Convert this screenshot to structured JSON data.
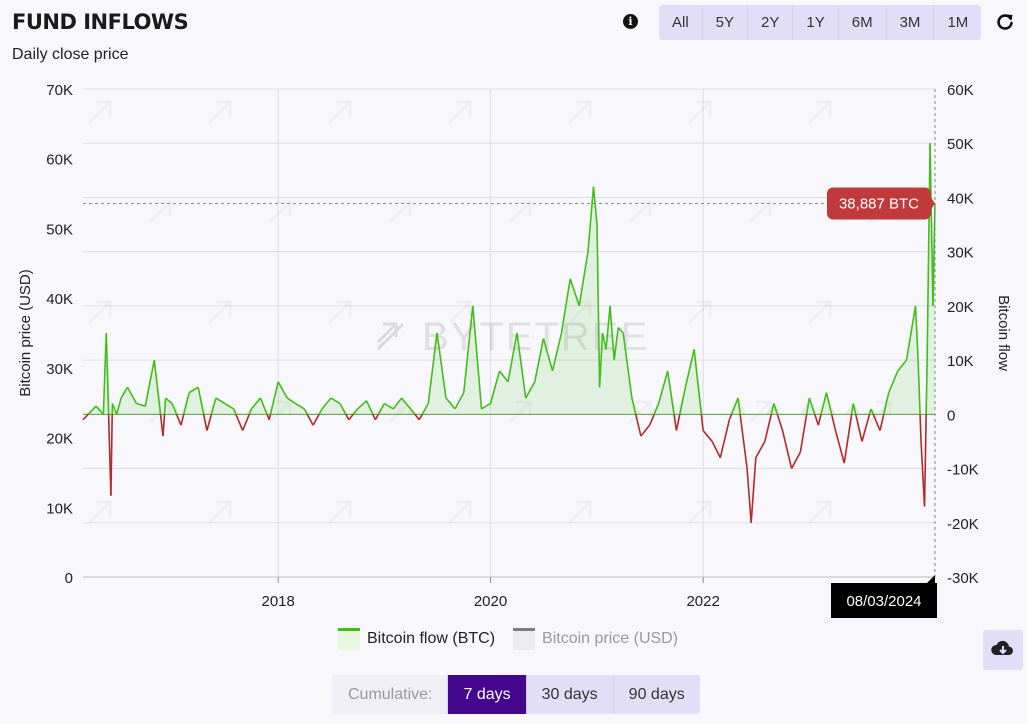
{
  "header": {
    "title": "FUND INFLOWS",
    "subtitle": "Daily close price",
    "info_icon": "info-icon",
    "refresh_icon": "refresh-icon"
  },
  "range_buttons": [
    "All",
    "5Y",
    "2Y",
    "1Y",
    "6M",
    "3M",
    "1M"
  ],
  "legend": {
    "flow_label": "Bitcoin flow (BTC)",
    "price_label": "Bitcoin price (USD)"
  },
  "cumulative": {
    "label": "Cumulative:",
    "options": [
      "7 days",
      "30 days",
      "90 days"
    ],
    "selected": "7 days"
  },
  "download_icon": "cloud-download-icon",
  "watermark": "BYTETREE",
  "colors": {
    "inflow": "#43bd1b",
    "outflow": "#b22b2b",
    "accent": "#44068c",
    "tooltip": "#c0393b"
  },
  "chart_data": {
    "type": "line",
    "ylabel": "Bitcoin price (USD)",
    "y2label": "Bitcoin flow",
    "y_left": {
      "range": [
        0,
        70000
      ],
      "ticks": [
        "0",
        "10K",
        "20K",
        "30K",
        "40K",
        "50K",
        "60K",
        "70K"
      ]
    },
    "y_right": {
      "range": [
        -30000,
        60000
      ],
      "ticks": [
        "-30K",
        "-20K",
        "-10K",
        "0",
        "10K",
        "20K",
        "30K",
        "40K",
        "50K",
        "60K"
      ]
    },
    "x_ticks": [
      "2018",
      "2020",
      "2022"
    ],
    "x_range": [
      "2016-03-01",
      "2024-03-08"
    ],
    "grid": true,
    "series": [
      {
        "name": "Bitcoin flow (BTC)",
        "x": [
          "2016-03-01",
          "2016-04-15",
          "2016-05-10",
          "2016-05-20",
          "2016-06-05",
          "2016-06-10",
          "2016-06-25",
          "2016-07-10",
          "2016-08-01",
          "2016-09-01",
          "2016-10-01",
          "2016-11-01",
          "2016-12-01",
          "2016-12-10",
          "2017-01-01",
          "2017-02-01",
          "2017-03-01",
          "2017-04-01",
          "2017-05-01",
          "2017-06-01",
          "2017-07-01",
          "2017-08-01",
          "2017-09-01",
          "2017-10-01",
          "2017-11-01",
          "2017-12-01",
          "2018-01-01",
          "2018-02-01",
          "2018-03-01",
          "2018-04-01",
          "2018-05-01",
          "2018-06-01",
          "2018-07-01",
          "2018-08-01",
          "2018-09-01",
          "2018-10-01",
          "2018-11-01",
          "2018-12-01",
          "2019-01-01",
          "2019-02-01",
          "2019-03-01",
          "2019-04-01",
          "2019-05-01",
          "2019-06-01",
          "2019-07-01",
          "2019-08-01",
          "2019-09-01",
          "2019-10-01",
          "2019-11-01",
          "2019-12-01",
          "2020-01-01",
          "2020-02-01",
          "2020-03-01",
          "2020-04-01",
          "2020-05-01",
          "2020-06-01",
          "2020-07-01",
          "2020-08-01",
          "2020-09-01",
          "2020-10-01",
          "2020-11-01",
          "2020-12-01",
          "2020-12-20",
          "2021-01-01",
          "2021-01-10",
          "2021-01-20",
          "2021-02-01",
          "2021-02-15",
          "2021-03-01",
          "2021-03-15",
          "2021-04-01",
          "2021-05-01",
          "2021-06-01",
          "2021-07-01",
          "2021-08-01",
          "2021-09-01",
          "2021-10-01",
          "2021-11-01",
          "2021-12-01",
          "2022-01-01",
          "2022-02-01",
          "2022-03-01",
          "2022-04-01",
          "2022-05-01",
          "2022-06-01",
          "2022-06-15",
          "2022-07-01",
          "2022-08-01",
          "2022-09-01",
          "2022-10-01",
          "2022-11-01",
          "2022-12-01",
          "2023-01-01",
          "2023-02-01",
          "2023-03-01",
          "2023-04-01",
          "2023-05-01",
          "2023-06-01",
          "2023-07-01",
          "2023-08-01",
          "2023-09-01",
          "2023-10-01",
          "2023-11-01",
          "2023-12-01",
          "2024-01-01",
          "2024-01-10",
          "2024-01-20",
          "2024-02-01",
          "2024-02-10",
          "2024-02-20",
          "2024-03-01",
          "2024-03-08"
        ],
        "values": [
          -1000,
          1500,
          0,
          15000,
          -15000,
          2000,
          0,
          3000,
          5000,
          2000,
          1500,
          10000,
          -4000,
          3000,
          2000,
          -2000,
          4000,
          5000,
          -3000,
          3000,
          2000,
          1000,
          -3000,
          1000,
          3000,
          -1000,
          6000,
          3000,
          2000,
          1000,
          -2000,
          1000,
          3000,
          2000,
          -1000,
          1000,
          2500,
          -1000,
          2000,
          1000,
          3000,
          1000,
          -1000,
          2000,
          15000,
          3000,
          1000,
          4000,
          20000,
          1000,
          2000,
          8000,
          6000,
          15000,
          3000,
          6000,
          14000,
          8000,
          15000,
          25000,
          20000,
          30000,
          42000,
          35000,
          5000,
          15000,
          12000,
          20000,
          10000,
          16000,
          15000,
          3000,
          -4000,
          -2000,
          2000,
          8000,
          -3000,
          5000,
          12000,
          -3000,
          -5000,
          -8000,
          -1000,
          3000,
          -10000,
          -20000,
          -8000,
          -5000,
          2000,
          -3000,
          -10000,
          -7000,
          3000,
          -2000,
          4000,
          -3000,
          -9000,
          2000,
          -5000,
          1000,
          -3000,
          4000,
          8000,
          10000,
          20000,
          10000,
          -5000,
          -17000,
          10000,
          50000,
          20000,
          38887
        ]
      },
      {
        "name": "Bitcoin price (USD)",
        "hidden": true
      }
    ],
    "tooltip": {
      "value": "38,887 BTC",
      "date": "08/03/2024"
    }
  }
}
